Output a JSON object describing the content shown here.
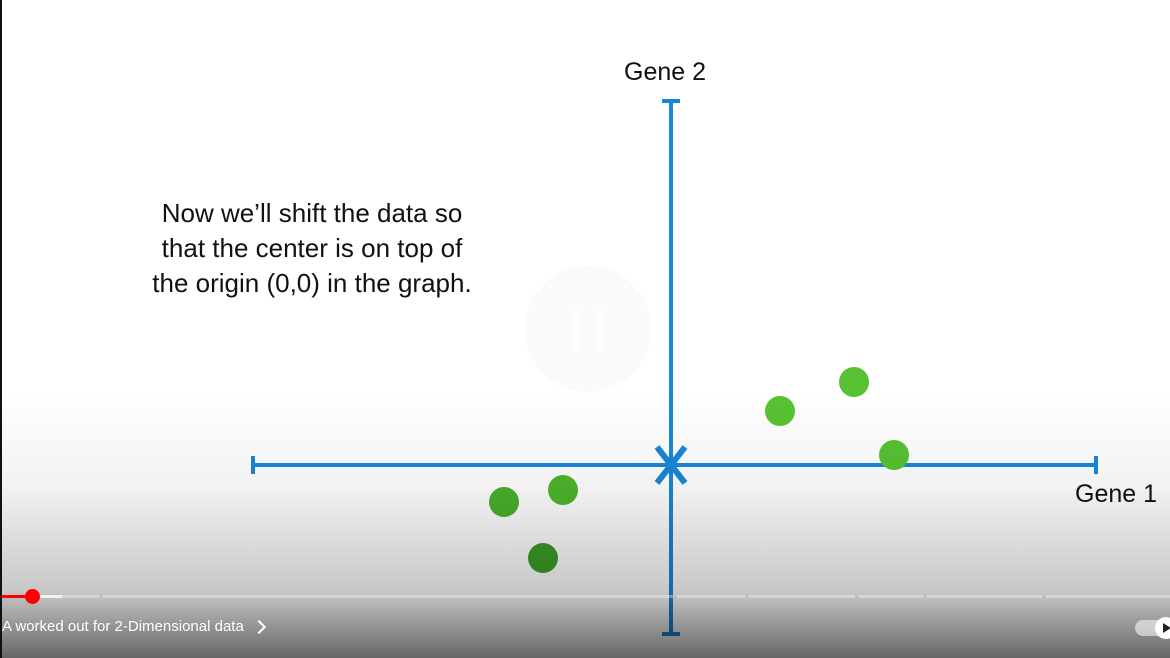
{
  "slide": {
    "caption_lines": [
      "Now we’ll shift the data so",
      "that the center is on top of",
      "the origin (0,0) in the graph."
    ],
    "y_axis_label": "Gene 2",
    "x_axis_label": "Gene 1"
  },
  "colors": {
    "axis": "#1a86d8",
    "point": "#57c232",
    "point_dark": "#3a9e25",
    "progress_played": "#ff0000"
  },
  "player": {
    "state_icon": "pause-icon",
    "progress_fraction": 0.026,
    "buffered_fraction": 0.051,
    "chapter_title": "A worked out for 2-Dimensional data",
    "autoplay": "on"
  }
}
